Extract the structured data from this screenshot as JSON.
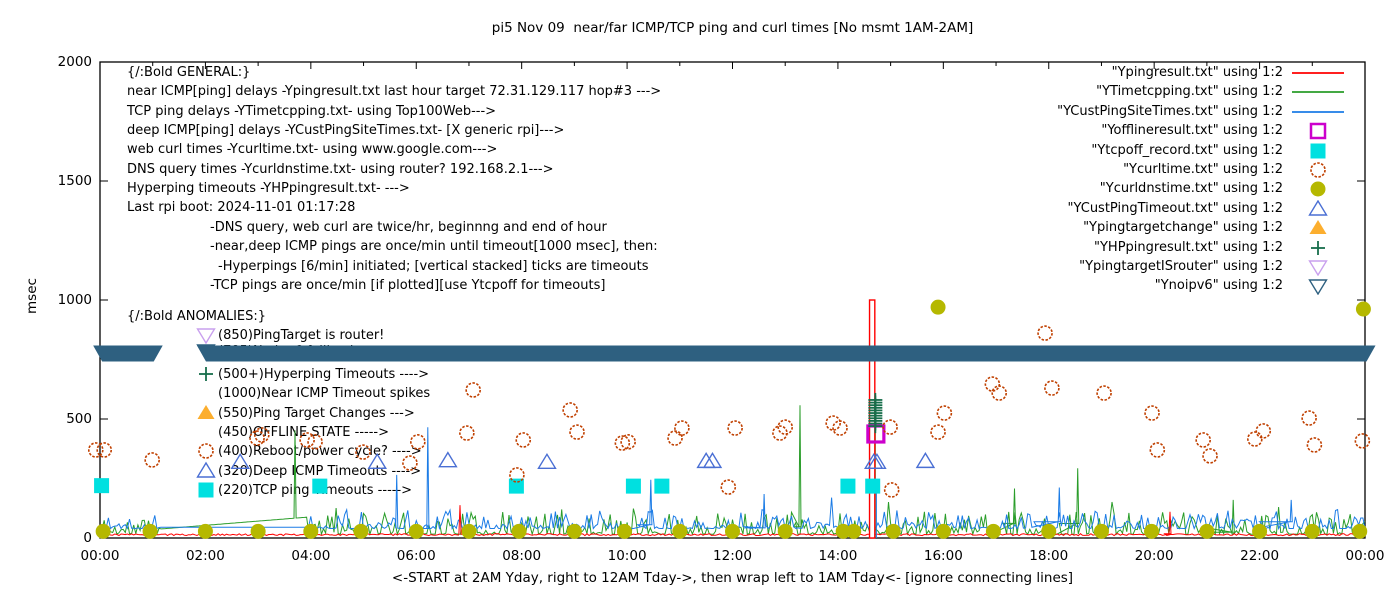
{
  "title": "pi5 Nov 09  near/far ICMP/TCP ping and curl times [No msmt 1AM-2AM]",
  "axes": {
    "ylabel": "msec",
    "xlabel": "<-START at 2AM Yday, right to 12AM Tday->, then wrap left to 1AM Tday<- [ignore connecting lines]",
    "yticks": [
      "0",
      "500",
      "1000",
      "1500",
      "2000"
    ],
    "ytick_values": [
      0,
      500,
      1000,
      1500,
      2000
    ],
    "xticks": [
      "00:00",
      "02:00",
      "04:00",
      "06:00",
      "08:00",
      "10:00",
      "12:00",
      "14:00",
      "16:00",
      "18:00",
      "20:00",
      "22:00",
      "00:00"
    ],
    "xtick_hours": [
      0,
      2,
      4,
      6,
      8,
      10,
      12,
      14,
      16,
      18,
      20,
      22,
      24
    ],
    "ylim": [
      0,
      2000
    ],
    "xlim_hours": [
      0,
      24
    ]
  },
  "legend": {
    "position": "inside top right",
    "entries": [
      {
        "label": "\"Ypingresult.txt\" using 1:2",
        "swatch": "line",
        "color": "#ff0000"
      },
      {
        "label": "\"YTimetcpping.txt\" using 1:2",
        "swatch": "line",
        "color": "#2a9d2a"
      },
      {
        "label": "\"YCustPingSiteTimes.txt\" using 1:2",
        "swatch": "line",
        "color": "#1c7ce6"
      },
      {
        "label": "\"Yofflineresult.txt\" using 1:2",
        "swatch": "square-open",
        "color": "#cc00cc"
      },
      {
        "label": "\"Ytcpoff_record.txt\" using 1:2",
        "swatch": "square-filled",
        "color": "#00e0e0"
      },
      {
        "label": "\"Ycurltime.txt\" using 1:2",
        "swatch": "circle-open",
        "color": "#c04000"
      },
      {
        "label": "\"Ycurldnstime.txt\" using 1:2",
        "swatch": "circle-filled",
        "color": "#b5b800"
      },
      {
        "label": "\"YCustPingTimeout.txt\" using 1:2",
        "swatch": "triangle-up-open",
        "color": "#4a6fd4"
      },
      {
        "label": "\"Ypingtargetchange\" using 1:2",
        "swatch": "triangle-up-filled",
        "color": "#fcae2e"
      },
      {
        "label": "\"YHPpingresult.txt\" using 1:2",
        "swatch": "plus",
        "color": "#176e4b"
      },
      {
        "label": "\"YpingtargetISrouter\" using 1:2",
        "swatch": "triangle-down-open",
        "color": "#c9a0ee"
      },
      {
        "label": "\"Ynoipv6\" using 1:2",
        "swatch": "triangle-down-open",
        "color": "#2e6080"
      }
    ]
  },
  "annotations": {
    "general": {
      "header": "{/:Bold GENERAL:}",
      "lines": [
        {
          "text": "near ICMP[ping] delays -Ypingresult.txt last hour target 72.31.129.117 hop#3 --->",
          "indent": 0
        },
        {
          "text": "TCP ping delays -YTimetcpping.txt- using Top100Web--->",
          "indent": 0
        },
        {
          "text": "deep ICMP[ping] delays -YCustPingSiteTimes.txt- [X generic rpi]--->",
          "indent": 0
        },
        {
          "text": "web curl times -Ycurltime.txt- using www.google.com--->",
          "indent": 0
        },
        {
          "text": "DNS query times -Ycurldnstime.txt- using router? 192.168.2.1--->",
          "indent": 0
        },
        {
          "text": "Hyperping timeouts -YHPpingresult.txt- --->",
          "indent": 0
        },
        {
          "text": "Last rpi boot: 2024-11-01 01:17:28",
          "indent": 0
        },
        {
          "text": "-DNS query, web curl are twice/hr, beginnng and end of hour",
          "indent": 1
        },
        {
          "text": "-near,deep ICMP pings are once/min until timeout[1000 msec], then:",
          "indent": 1
        },
        {
          "text": "-Hyperpings [6/min] initiated; [vertical stacked] ticks are timeouts",
          "indent": 2
        },
        {
          "text": "-TCP pings are once/min [if plotted][use Ytcpoff for timeouts]",
          "indent": 1
        }
      ]
    },
    "anomalies": {
      "header": "{/:Bold ANOMALIES:}",
      "rows": [
        {
          "icon": "triangle-down-open",
          "icon_color": "#c9a0ee",
          "text": "(850)PingTarget is router!"
        },
        {
          "icon": "triangle-down-open",
          "icon_color": "#2e6080",
          "text": "(785)No ipv6 fallback --->",
          "covered_by_band": true
        },
        {
          "icon": "plus",
          "icon_color": "#176e4b",
          "text": "(500+)Hyperping Timeouts ---->"
        },
        {
          "icon": "",
          "icon_color": "",
          "text": "(1000)Near ICMP Timeout spikes"
        },
        {
          "icon": "triangle-up-filled",
          "icon_color": "#fcae2e",
          "text": "(550)Ping Target Changes --->"
        },
        {
          "icon": "",
          "icon_color": "",
          "text": "(450)OFFLINE STATE ----->"
        },
        {
          "icon": "circle-open",
          "icon_color": "#c04000",
          "text": "(400)Reboot/power cycle? ---->"
        },
        {
          "icon": "triangle-up-open",
          "icon_color": "#4a6fd4",
          "text": "(320)Deep ICMP Timeouts ---->"
        },
        {
          "icon": "square-filled",
          "icon_color": "#00e0e0",
          "text": "(220)TCP ping Timeouts ----->"
        }
      ]
    }
  },
  "chart_data": {
    "type": "line+scatter",
    "x_unit": "hours (00:00-24:00)",
    "y_unit": "msec",
    "ylim": [
      0,
      2000
    ],
    "grid": false,
    "series": [
      {
        "key": "ping_near",
        "name": "Ypingresult.txt",
        "type": "line",
        "color": "#ff0000",
        "baseline_msec": 10,
        "noise_amp": 8,
        "spikes": [
          [
            6.83,
            138
          ],
          [
            20.3,
            110
          ]
        ],
        "timeout_spike": {
          "hours": [
            14.6,
            14.7
          ],
          "peak_msec": 1000
        }
      },
      {
        "key": "tcp_ping",
        "name": "YTimetcpping.txt",
        "type": "line",
        "color": "#2a9d2a",
        "baseline_msec": 16,
        "noise_amp": 95,
        "gap": {
          "from_hour": 1.15,
          "to_hour": 3.95,
          "v0": 38,
          "v1": 88
        },
        "spikes": [
          [
            3.7,
            452
          ],
          [
            13.28,
            558
          ],
          [
            17.35,
            208
          ],
          [
            18.55,
            293
          ],
          [
            21.5,
            160
          ]
        ]
      },
      {
        "key": "deep_ping",
        "name": "YCustPingSiteTimes.txt",
        "type": "line",
        "color": "#1c7ce6",
        "baseline_msec": 40,
        "noise_amp": 80,
        "gap": {
          "from_hour": 1.15,
          "to_hour": 3.95,
          "v0": 45,
          "v1": 45
        },
        "spikes": [
          [
            5.63,
            265
          ],
          [
            6.22,
            465
          ],
          [
            10.45,
            245
          ],
          [
            12.6,
            185
          ],
          [
            18.2,
            212
          ],
          [
            22.6,
            160
          ]
        ]
      },
      {
        "key": "offline",
        "name": "Yofflineresult.txt",
        "type": "scatter",
        "marker": "square-open",
        "color": "#cc00cc",
        "points": [
          [
            14.72,
            437
          ]
        ]
      },
      {
        "key": "tcpoff",
        "name": "Ytcpoff_record.txt",
        "type": "scatter",
        "marker": "square-filled",
        "color": "#00e0e0",
        "points": [
          [
            0.03,
            220
          ],
          [
            4.17,
            218
          ],
          [
            7.9,
            218
          ],
          [
            10.12,
            218
          ],
          [
            10.66,
            218
          ],
          [
            14.19,
            218
          ],
          [
            14.66,
            218
          ]
        ]
      },
      {
        "key": "curl",
        "name": "Ycurltime.txt",
        "type": "scatter",
        "marker": "circle-open",
        "color": "#c04000",
        "points": [
          [
            -0.08,
            370
          ],
          [
            0.08,
            370
          ],
          [
            0.99,
            328
          ],
          [
            2.98,
            420
          ],
          [
            3.07,
            433
          ],
          [
            3.93,
            412
          ],
          [
            4.08,
            404
          ],
          [
            4.99,
            361
          ],
          [
            5.88,
            315
          ],
          [
            6.03,
            404
          ],
          [
            6.96,
            441
          ],
          [
            7.08,
            622
          ],
          [
            7.91,
            265
          ],
          [
            8.03,
            412
          ],
          [
            8.92,
            538
          ],
          [
            9.05,
            445
          ],
          [
            9.91,
            399
          ],
          [
            10.02,
            404
          ],
          [
            10.91,
            420
          ],
          [
            11.04,
            462
          ],
          [
            11.92,
            214
          ],
          [
            12.05,
            462
          ],
          [
            12.9,
            441
          ],
          [
            13.0,
            466
          ],
          [
            13.91,
            483
          ],
          [
            14.04,
            462
          ],
          [
            14.99,
            466
          ],
          [
            15.02,
            202
          ],
          [
            15.9,
            445
          ],
          [
            16.02,
            525
          ],
          [
            16.93,
            647
          ],
          [
            17.06,
            609
          ],
          [
            17.93,
            861
          ],
          [
            18.06,
            630
          ],
          [
            19.05,
            609
          ],
          [
            19.96,
            525
          ],
          [
            20.06,
            370
          ],
          [
            20.93,
            412
          ],
          [
            21.06,
            345
          ],
          [
            21.91,
            416
          ],
          [
            22.07,
            450
          ],
          [
            22.94,
            504
          ],
          [
            23.04,
            391
          ],
          [
            23.95,
            408
          ]
        ]
      },
      {
        "key": "dns",
        "name": "Ycurldnstime.txt",
        "type": "scatter",
        "marker": "circle-filled",
        "color": "#b5b800",
        "high_points": [
          [
            15.9,
            970
          ],
          [
            23.97,
            962
          ]
        ],
        "low_points_msec": 28,
        "low_points_hours": [
          0.06,
          0.95,
          2.0,
          3.0,
          4.0,
          4.95,
          6.0,
          7.0,
          7.95,
          9.0,
          9.95,
          11.0,
          12.0,
          13.0,
          14.1,
          14.3,
          15.05,
          16.0,
          16.95,
          18.0,
          19.0,
          19.95,
          21.0,
          22.0,
          23.0,
          23.9
        ]
      },
      {
        "key": "ping_timeout",
        "name": "YCustPingTimeout.txt",
        "type": "scatter",
        "marker": "triangle-up-open",
        "color": "#4a6fd4",
        "points": [
          [
            2.66,
            318
          ],
          [
            5.26,
            318
          ],
          [
            6.6,
            325
          ],
          [
            8.48,
            318
          ],
          [
            11.5,
            322
          ],
          [
            11.62,
            322
          ],
          [
            14.68,
            318
          ],
          [
            14.74,
            318
          ],
          [
            15.66,
            322
          ]
        ]
      },
      {
        "key": "hyperping",
        "name": "YHPpingresult.txt",
        "type": "scatter",
        "marker": "plus",
        "color": "#176e4b",
        "stack": {
          "x_hour": 14.71,
          "msec_from": 470,
          "msec_to": 580,
          "msec_step": 11
        }
      },
      {
        "key": "noipv6",
        "name": "Ynoipv6",
        "type": "band",
        "marker": "triangle-down-open",
        "color": "#2e6080",
        "msec": 775,
        "segments_hours": [
          [
            -0.13,
            1.19
          ],
          [
            1.84,
            24.2
          ]
        ]
      }
    ],
    "connecting_lines": [
      {
        "color": "#2a9d2a",
        "x_hour": 14.71,
        "msec_from": 0,
        "msec_to": 465
      },
      {
        "color": "#1c7ce6",
        "x_hour": 14.73,
        "msec_from": 0,
        "msec_to": 205
      }
    ]
  }
}
